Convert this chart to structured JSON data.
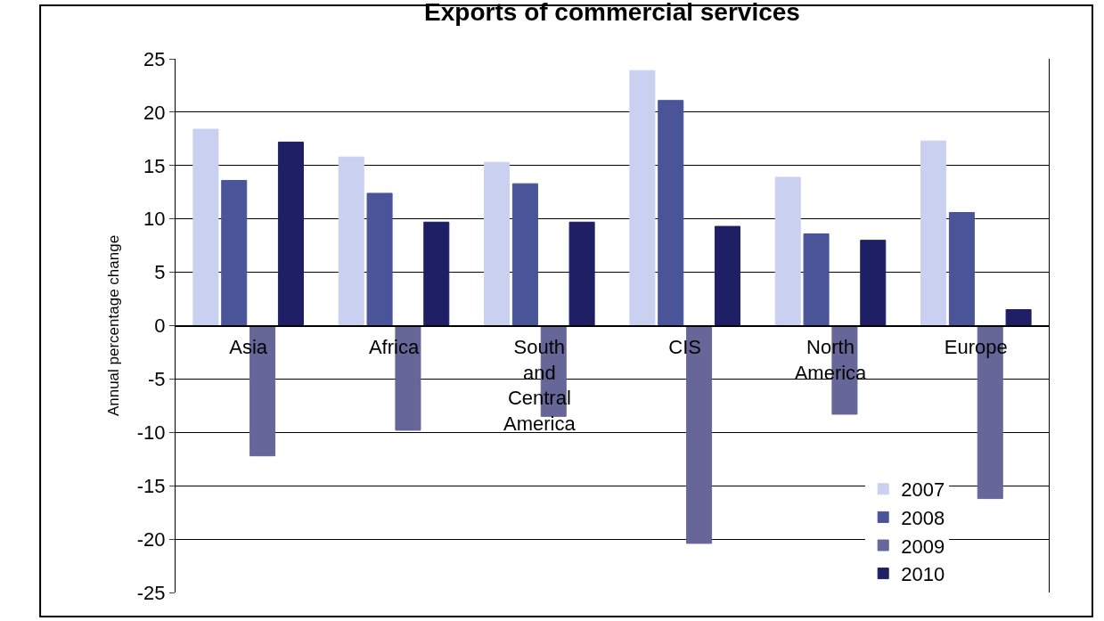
{
  "chart_data": {
    "type": "bar",
    "title": "Exports of commercial services",
    "ylabel": "Annual percentage change",
    "categories": [
      "Asia",
      "Africa",
      "South and Central America",
      "CIS",
      "North America",
      "Europe"
    ],
    "series": [
      {
        "name": "2007",
        "color": "#c9d0f0",
        "values": [
          18.4,
          15.8,
          15.3,
          23.9,
          13.9,
          17.3
        ]
      },
      {
        "name": "2008",
        "color": "#4a5498",
        "values": [
          13.6,
          12.4,
          13.3,
          21.1,
          8.6,
          10.6
        ]
      },
      {
        "name": "2009",
        "color": "#666699",
        "values": [
          -12.2,
          -9.8,
          -8.5,
          -20.4,
          -8.3,
          -16.2
        ]
      },
      {
        "name": "2010",
        "color": "#1f1f66",
        "values": [
          17.2,
          9.7,
          9.7,
          9.3,
          8.0,
          1.5
        ]
      }
    ],
    "ylim": [
      -25,
      25
    ],
    "yticks": [
      -25,
      -20,
      -15,
      -10,
      -5,
      0,
      5,
      10,
      15,
      20,
      25
    ],
    "grid": "y",
    "legend": "bottom right"
  }
}
